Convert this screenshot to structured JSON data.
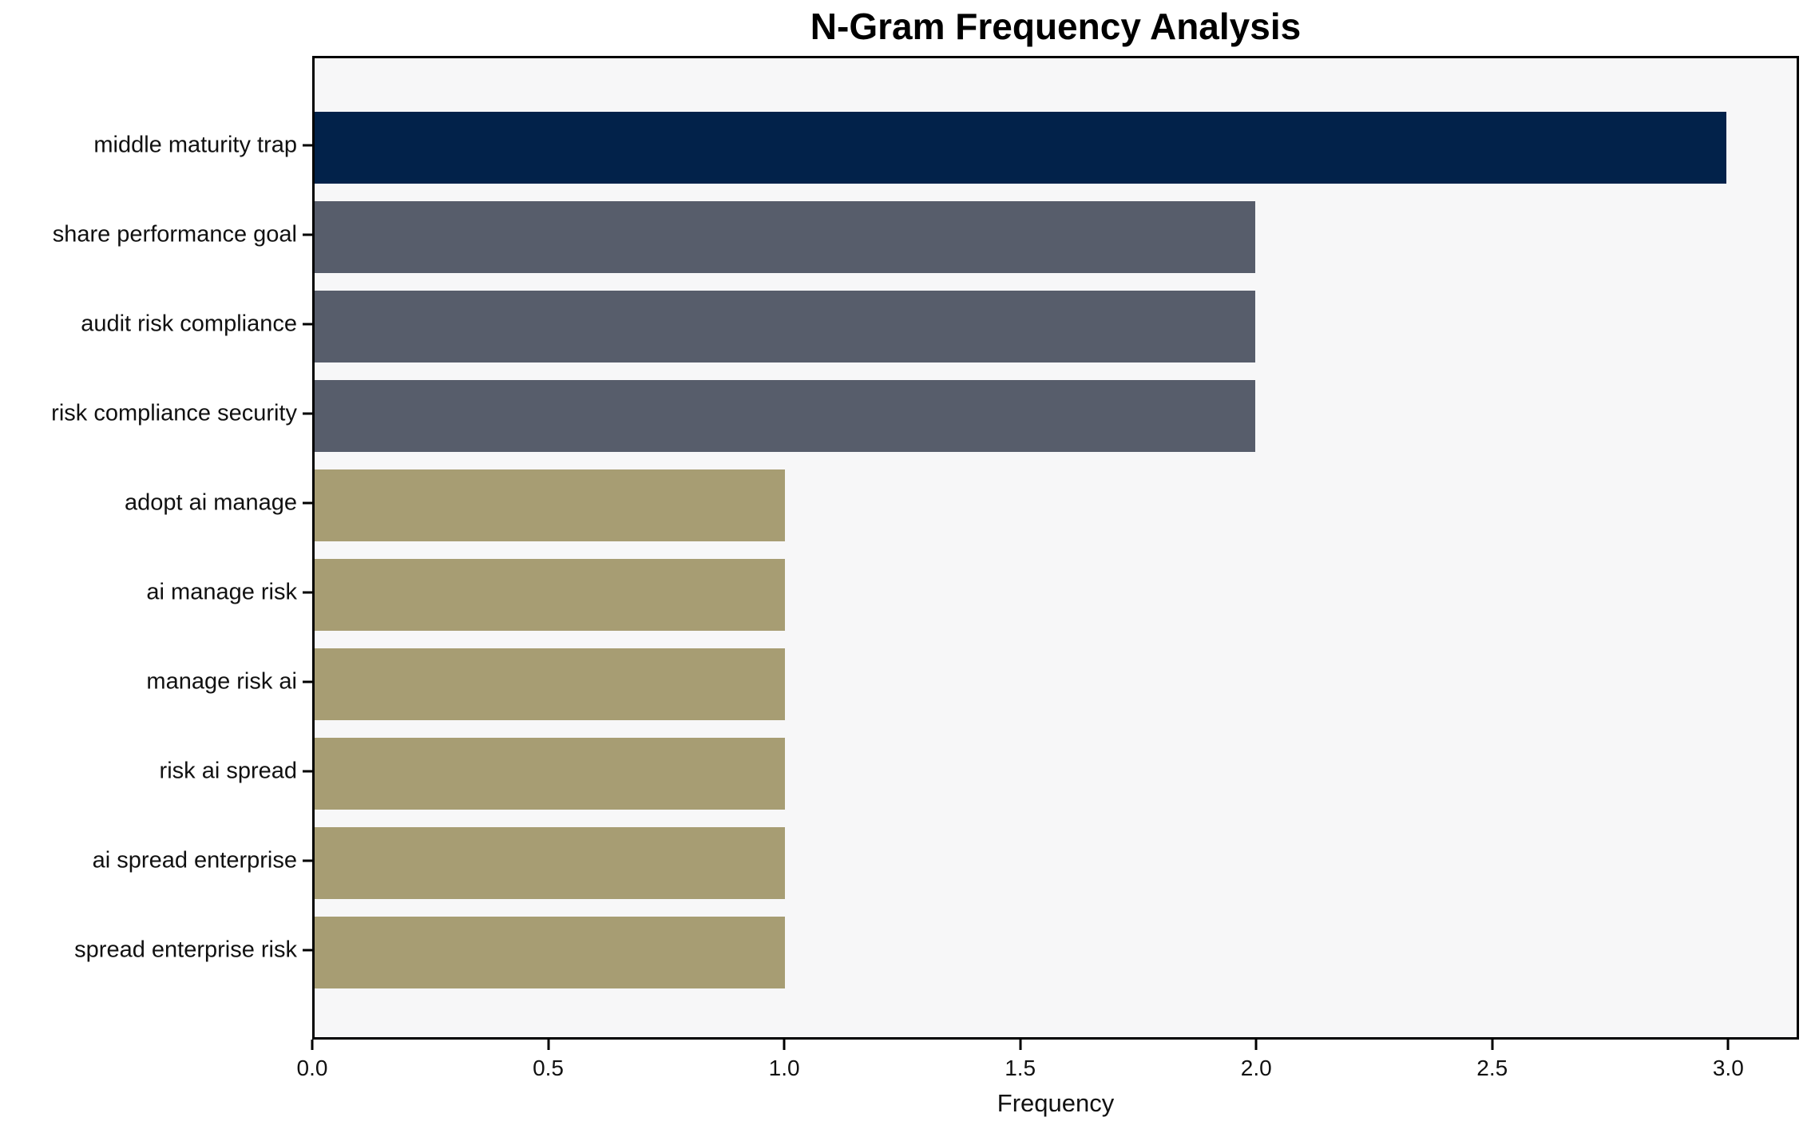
{
  "chart_data": {
    "type": "bar",
    "orientation": "horizontal",
    "title": "N-Gram Frequency Analysis",
    "xlabel": "Frequency",
    "ylabel": "",
    "categories": [
      "middle maturity trap",
      "share performance goal",
      "audit risk compliance",
      "risk compliance security",
      "adopt ai manage",
      "ai manage risk",
      "manage risk ai",
      "risk ai spread",
      "ai spread enterprise",
      "spread enterprise risk"
    ],
    "values": [
      3,
      2,
      2,
      2,
      1,
      1,
      1,
      1,
      1,
      1
    ],
    "bar_colors": [
      "#02224A",
      "#575D6B",
      "#575D6B",
      "#575D6B",
      "#A79D73",
      "#A79D73",
      "#A79D73",
      "#A79D73",
      "#A79D73",
      "#A79D73"
    ],
    "xlim": [
      0,
      3.15
    ],
    "xticks": [
      0.0,
      0.5,
      1.0,
      1.5,
      2.0,
      2.5,
      3.0
    ],
    "xtick_labels": [
      "0.0",
      "0.5",
      "1.0",
      "1.5",
      "2.0",
      "2.5",
      "3.0"
    ],
    "grid": false,
    "legend": null,
    "colors": {
      "plot_background": "#F7F7F8",
      "figure_background": "#FFFFFF",
      "axis": "#000000",
      "text": "#111111"
    }
  }
}
